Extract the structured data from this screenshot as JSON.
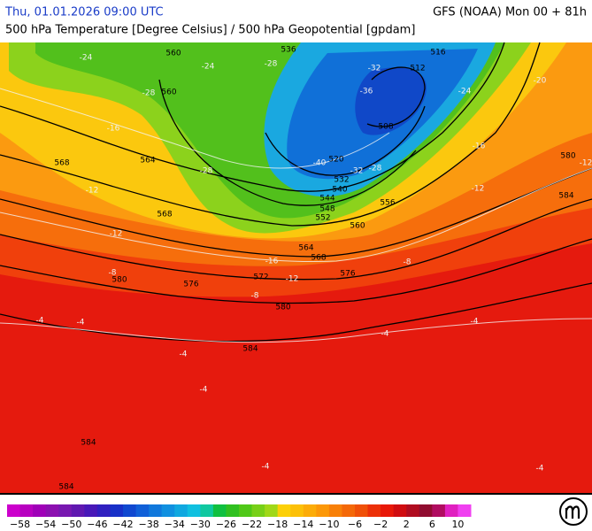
{
  "header": {
    "datetime": "Thu, 01.01.2026 09:00 UTC",
    "model": "GFS (NOAA) Mon 00 + 81h",
    "title": "500 hPa Temperature [Degree Celsius] / 500 hPa Geopotential [gpdam]"
  },
  "geopotential_labels": [
    "536",
    "560",
    "560",
    "512",
    "516",
    "508",
    "520",
    "532",
    "540",
    "544",
    "548",
    "552",
    "556",
    "560",
    "564",
    "568",
    "568",
    "564",
    "568",
    "576",
    "572",
    "576",
    "580",
    "580",
    "580",
    "584",
    "584",
    "584",
    "584"
  ],
  "temperature_labels": [
    "-24",
    "-28",
    "-32",
    "-36",
    "-24",
    "-28",
    "-40",
    "-32",
    "-28",
    "-28",
    "-24",
    "-20",
    "-16",
    "-12",
    "-12",
    "-16",
    "-12",
    "-12",
    "-8",
    "-8",
    "-8",
    "-4",
    "-4",
    "-4",
    "-4",
    "-4",
    "-4",
    "-4",
    "-4",
    "-12",
    "-16"
  ],
  "colorbar": {
    "range": [
      -60,
      12
    ],
    "colors": [
      "#cc00cc",
      "#b800c0",
      "#a000b8",
      "#8c10b0",
      "#7818b0",
      "#6018b0",
      "#4818b8",
      "#3020c0",
      "#1830c8",
      "#1048d0",
      "#1060d8",
      "#1078dc",
      "#1090e0",
      "#10a8e0",
      "#10c0e0",
      "#10c8a0",
      "#10c040",
      "#30c020",
      "#50c818",
      "#78d018",
      "#a0d818",
      "#fcd008",
      "#fcc008",
      "#fcac08",
      "#fc9808",
      "#f88008",
      "#f46808",
      "#f05008",
      "#ec3008",
      "#e81808",
      "#d00c10",
      "#b00c20",
      "#900c30",
      "#b00c60",
      "#e020c0",
      "#f040f0"
    ],
    "ticks": [
      {
        "value": -58,
        "label": "−58"
      },
      {
        "value": -54,
        "label": "−54"
      },
      {
        "value": -50,
        "label": "−50"
      },
      {
        "value": -46,
        "label": "−46"
      },
      {
        "value": -42,
        "label": "−42"
      },
      {
        "value": -38,
        "label": "−38"
      },
      {
        "value": -34,
        "label": "−34"
      },
      {
        "value": -30,
        "label": "−30"
      },
      {
        "value": -26,
        "label": "−26"
      },
      {
        "value": -22,
        "label": "−22"
      },
      {
        "value": -18,
        "label": "−18"
      },
      {
        "value": -14,
        "label": "−14"
      },
      {
        "value": -10,
        "label": "−10"
      },
      {
        "value": -6,
        "label": "−6"
      },
      {
        "value": -2,
        "label": "−2"
      },
      2,
      6,
      10
    ]
  }
}
